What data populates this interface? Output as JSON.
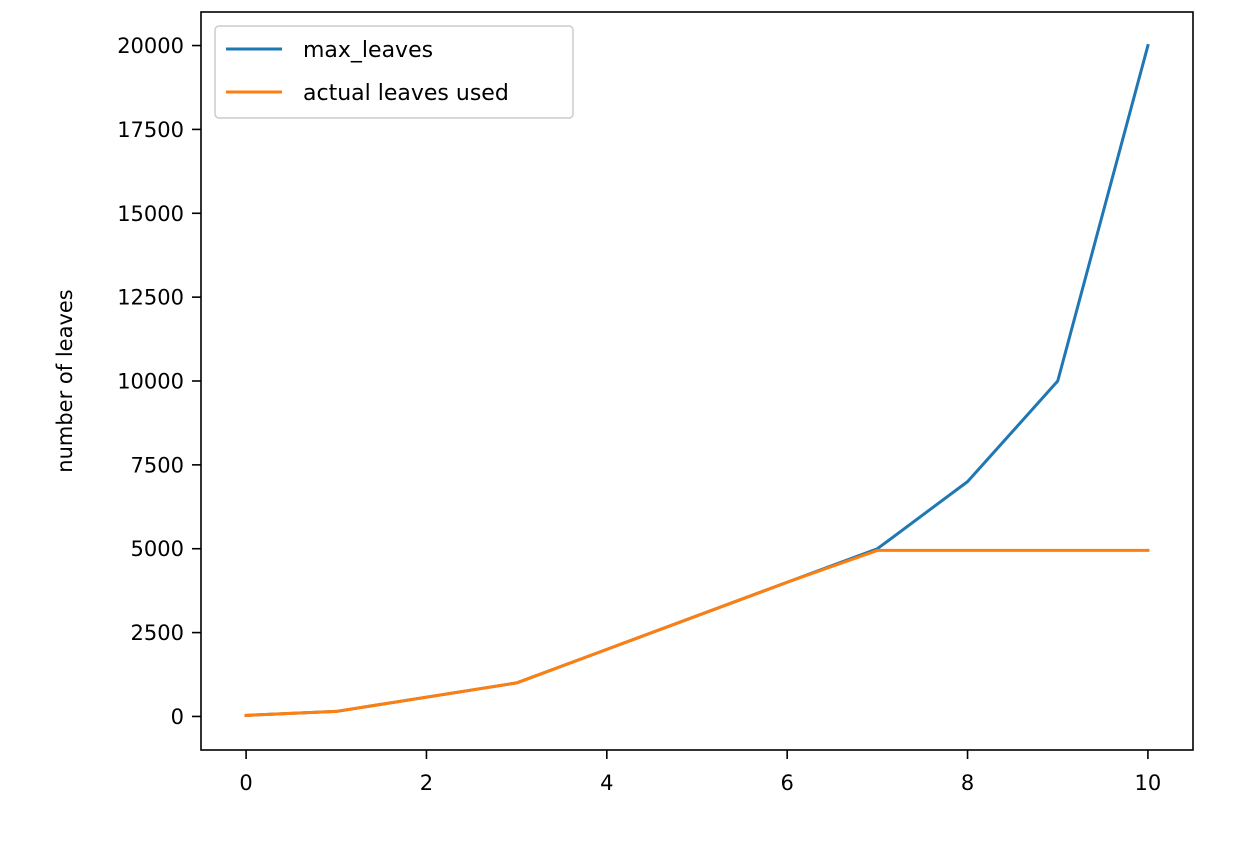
{
  "chart_data": {
    "type": "line",
    "title": "",
    "xlabel": "",
    "ylabel": "number of leaves",
    "xlim": [
      -0.5,
      10.5
    ],
    "ylim": [
      -1000,
      21000
    ],
    "x_ticks": [
      0,
      2,
      4,
      6,
      8,
      10
    ],
    "y_ticks": [
      0,
      2500,
      5000,
      7500,
      10000,
      12500,
      15000,
      17500,
      20000
    ],
    "grid": false,
    "legend_position": "upper-left",
    "x": [
      0,
      1,
      3,
      4,
      5,
      6,
      7,
      8,
      9,
      10
    ],
    "series": [
      {
        "name": "max_leaves",
        "color": "#1f77b4",
        "values": [
          31,
          150,
          1000,
          2000,
          3000,
          4000,
          5000,
          7000,
          10000,
          20000
        ]
      },
      {
        "name": "actual leaves used",
        "color": "#ff7f0e",
        "values": [
          31,
          150,
          1000,
          2000,
          3000,
          4000,
          4950,
          4950,
          4950,
          4950
        ]
      }
    ],
    "extra_points_note": ""
  }
}
